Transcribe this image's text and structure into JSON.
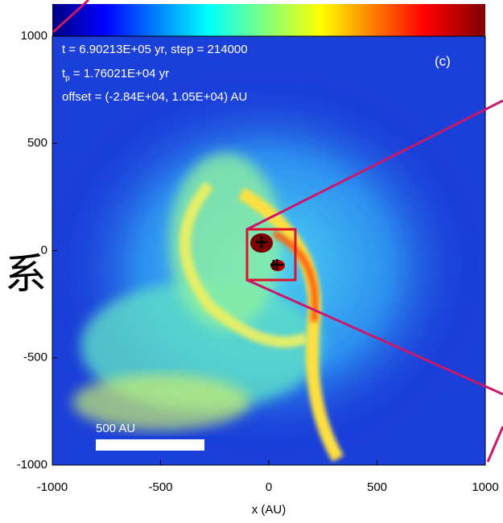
{
  "chart_data": {
    "type": "image",
    "xlabel": "x (AU)",
    "xlim": [
      -1000,
      1000
    ],
    "ylim": [
      -1000,
      1000
    ],
    "xticks": [
      -1000,
      -500,
      0,
      500,
      1000
    ],
    "yticks": [
      -1000,
      -500,
      0,
      500,
      1000
    ],
    "panel_label": "(c)",
    "annotations": [
      "t = 6.90213E+05 yr, step = 214000",
      {
        "base": "t",
        "sub": "p",
        "rest": " = 1.76021E+04 yr"
      },
      "offset = (-2.84E+04, 1.05E+04) AU"
    ],
    "scale_bar": "500 AU",
    "side_text": "系",
    "box_color": "#e0102a",
    "arrow_color": "#c8186e"
  }
}
